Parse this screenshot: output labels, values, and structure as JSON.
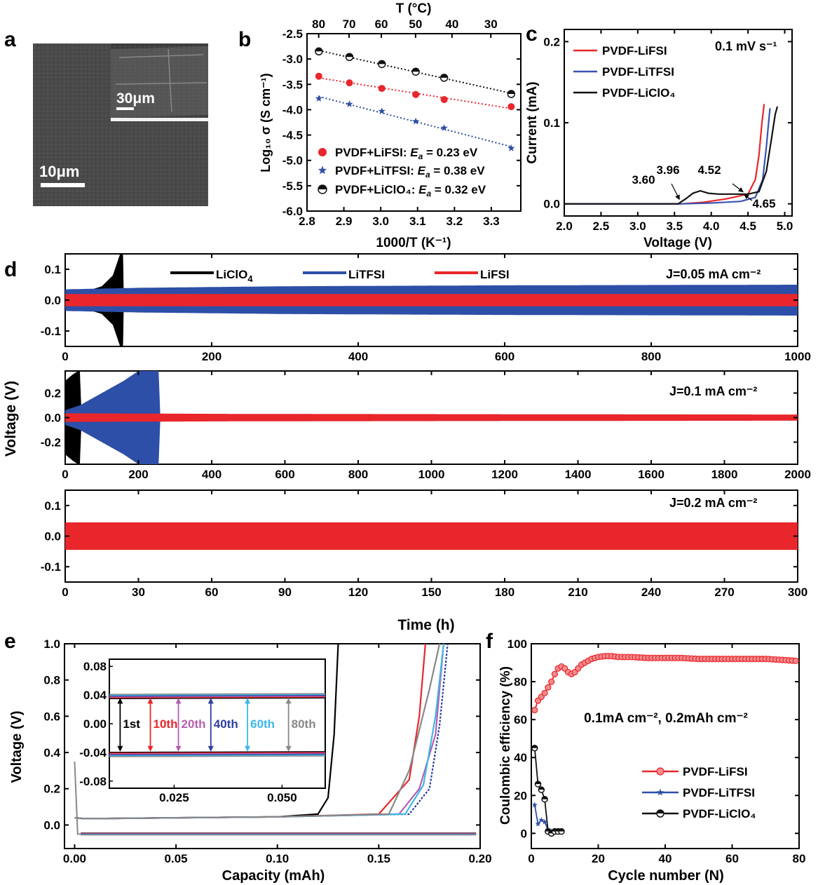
{
  "panels": {
    "a": {
      "letter": "a",
      "scalebar_main": "10μm",
      "scalebar_inset": "30μm"
    },
    "b": {
      "letter": "b"
    },
    "c": {
      "letter": "c"
    },
    "d": {
      "letter": "d"
    },
    "e": {
      "letter": "e"
    },
    "f": {
      "letter": "f"
    }
  },
  "chart_data": [
    {
      "id": "b",
      "type": "scatter",
      "xlabel": "1000/T (K⁻¹)",
      "ylabel": "Log₁₀ σ (S cm⁻¹)",
      "top_xlabel": "T (°C)",
      "xlim": [
        2.8,
        3.38
      ],
      "ylim": [
        -6.0,
        -2.5
      ],
      "xticks": [
        2.8,
        2.9,
        3.0,
        3.1,
        3.2,
        3.3
      ],
      "xtick_labels": [
        "2.8",
        "2.9",
        "3.0",
        "3.1",
        "3.2",
        "3.3"
      ],
      "yticks": [
        -2.5,
        -3.0,
        -3.5,
        -4.0,
        -4.5,
        -5.0,
        -5.5,
        -6.0
      ],
      "ytick_labels": [
        "-2.5",
        "-3.0",
        "-3.5",
        "-4.0",
        "-4.5",
        "-5.0",
        "-5.5",
        "-6.0"
      ],
      "top_ticks": [
        80,
        70,
        60,
        50,
        40,
        30
      ],
      "top_tick_labels": [
        "80",
        "70",
        "60",
        "50",
        "40",
        "30"
      ],
      "x": [
        2.832,
        2.915,
        3.003,
        3.095,
        3.172,
        3.354
      ],
      "series": [
        {
          "name": "PVDF+LiFSI",
          "legend": "PVDF+LiFSI: ",
          "ea": "E",
          "ea_sub": "a",
          "ea_val": " = 0.23 eV",
          "color": "#e8262b",
          "marker": "circle",
          "values": [
            -3.34,
            -3.47,
            -3.58,
            -3.7,
            -3.8,
            -3.94
          ]
        },
        {
          "name": "PVDF+LiTFSI",
          "legend": "PVDF+LiTFSI: ",
          "ea": "E",
          "ea_sub": "a",
          "ea_val": " = 0.38 eV",
          "color": "#2f4fa3",
          "marker": "star",
          "values": [
            -3.78,
            -3.89,
            -4.03,
            -4.23,
            -4.36,
            -4.76
          ]
        },
        {
          "name": "PVDF+LiClO4",
          "legend": "PVDF+LiClO₄: ",
          "ea": "E",
          "ea_sub": "a",
          "ea_val": " = 0.32 eV",
          "color": "#111111",
          "marker": "halfcircle",
          "values": [
            -2.85,
            -2.96,
            -3.1,
            -3.25,
            -3.37,
            -3.69
          ]
        }
      ]
    },
    {
      "id": "c",
      "type": "line",
      "xlabel": "Voltage (V)",
      "ylabel": "Current (mA)",
      "annotation": "0.1 mV s⁻¹",
      "xlim": [
        2.0,
        5.1
      ],
      "ylim": [
        -0.015,
        0.215
      ],
      "xticks": [
        2.0,
        2.5,
        3.0,
        3.5,
        4.0,
        4.5,
        5.0
      ],
      "xtick_labels": [
        "2.0",
        "2.5",
        "3.0",
        "3.5",
        "4.0",
        "4.5",
        "5.0"
      ],
      "yticks": [
        0.0,
        0.1,
        0.2
      ],
      "ytick_labels": [
        "0.0",
        "0.1",
        "0.2"
      ],
      "point_labels": [
        "3.60",
        "3.96",
        "4.52",
        "4.65"
      ],
      "series": [
        {
          "name": "PVDF-LiFSI",
          "color": "#e8262b",
          "x": [
            2.0,
            3.6,
            3.9,
            4.2,
            4.5,
            4.6,
            4.65,
            4.69,
            4.72
          ],
          "values": [
            0.0,
            0.0,
            0.002,
            0.006,
            0.012,
            0.03,
            0.06,
            0.1,
            0.123
          ]
        },
        {
          "name": "PVDF-LiTFSI",
          "color": "#3a52b0",
          "x": [
            2.0,
            3.6,
            4.0,
            4.4,
            4.6,
            4.7,
            4.75,
            4.78,
            4.8
          ],
          "values": [
            0.0,
            0.0,
            0.001,
            0.003,
            0.008,
            0.03,
            0.07,
            0.1,
            0.118
          ]
        },
        {
          "name": "PVDF-LiClO₄",
          "color": "#111111",
          "x": [
            2.0,
            3.55,
            3.65,
            3.75,
            3.85,
            3.96,
            4.1,
            4.3,
            4.5,
            4.65,
            4.75,
            4.82,
            4.87,
            4.9
          ],
          "values": [
            0.0,
            0.0,
            0.006,
            0.013,
            0.016,
            0.013,
            0.012,
            0.012,
            0.012,
            0.015,
            0.04,
            0.08,
            0.11,
            0.12
          ]
        }
      ]
    },
    {
      "id": "d1",
      "type": "area",
      "annotation": "J=0.05 mA cm⁻²",
      "xlim": [
        0,
        1000
      ],
      "ylim": [
        -0.15,
        0.15
      ],
      "xticks": [
        0,
        200,
        400,
        600,
        800,
        1000
      ],
      "xtick_labels": [
        "0",
        "200",
        "400",
        "600",
        "800",
        "1000"
      ],
      "yticks": [
        0.1,
        0.0,
        -0.1
      ],
      "ytick_labels": [
        "0.1",
        "0.0",
        "-0.1"
      ],
      "series": [
        {
          "name": "LiClO₄",
          "label": "LiClO",
          "sub": "4",
          "color": "#000000",
          "x": [
            0,
            10,
            30,
            50,
            65,
            75,
            79,
            80
          ],
          "amplitude": [
            0.03,
            0.025,
            0.03,
            0.045,
            0.08,
            0.15,
            0.15,
            0.0
          ]
        },
        {
          "name": "LiTFSI",
          "label": "LiTFSI",
          "color": "#2d4fa8",
          "x": [
            0,
            100,
            300,
            600,
            1000
          ],
          "amplitude": [
            0.035,
            0.04,
            0.045,
            0.048,
            0.05
          ]
        },
        {
          "name": "LiFSI",
          "label": "LiFSI",
          "color": "#e8262b",
          "x": [
            0,
            1000
          ],
          "amplitude": [
            0.02,
            0.02
          ]
        }
      ]
    },
    {
      "id": "d2",
      "type": "area",
      "ylabel": "Voltage (V)",
      "annotation": "J=0.1 mA cm⁻²",
      "xlim": [
        0,
        2000
      ],
      "ylim": [
        -0.38,
        0.38
      ],
      "xticks": [
        0,
        200,
        400,
        600,
        800,
        1000,
        1200,
        1400,
        1600,
        1800,
        2000
      ],
      "xtick_labels": [
        "0",
        "200",
        "400",
        "600",
        "800",
        "1000",
        "1200",
        "1400",
        "1600",
        "1800",
        "2000"
      ],
      "yticks": [
        0.2,
        0.0,
        -0.2
      ],
      "ytick_labels": [
        "0.2",
        "0.0",
        "-0.2"
      ],
      "series": [
        {
          "name": "LiClO₄",
          "color": "#000000",
          "x": [
            0,
            20,
            35,
            40,
            45
          ],
          "amplitude": [
            0.3,
            0.35,
            0.38,
            0.38,
            0.0
          ]
        },
        {
          "name": "LiTFSI",
          "color": "#2d4fa8",
          "x": [
            0,
            40,
            100,
            160,
            200,
            255,
            260
          ],
          "amplitude": [
            0.06,
            0.1,
            0.2,
            0.3,
            0.38,
            0.38,
            0.0
          ]
        },
        {
          "name": "LiFSI",
          "color": "#e8262b",
          "x": [
            0,
            500,
            2000
          ],
          "amplitude": [
            0.035,
            0.03,
            0.025
          ]
        }
      ]
    },
    {
      "id": "d3",
      "type": "area",
      "xlabel": "Time (h)",
      "annotation": "J=0.2 mA cm⁻²",
      "xlim": [
        0,
        300
      ],
      "ylim": [
        -0.15,
        0.15
      ],
      "xticks": [
        0,
        30,
        60,
        90,
        120,
        150,
        180,
        210,
        240,
        270,
        300
      ],
      "xtick_labels": [
        "0",
        "30",
        "60",
        "90",
        "120",
        "150",
        "180",
        "210",
        "240",
        "270",
        "300"
      ],
      "yticks": [
        0.1,
        0.0,
        -0.1
      ],
      "ytick_labels": [
        "0.1",
        "0.0",
        "-0.1"
      ],
      "series": [
        {
          "name": "LiFSI",
          "color": "#e8262b",
          "x": [
            0,
            300
          ],
          "amplitude": [
            0.045,
            0.045
          ]
        }
      ]
    },
    {
      "id": "e",
      "type": "line",
      "xlabel": "Capacity (mAh)",
      "ylabel": "Voltage (V)",
      "xlim": [
        -0.005,
        0.2
      ],
      "ylim": [
        -0.13,
        1.0
      ],
      "xticks": [
        0.0,
        0.05,
        0.1,
        0.15,
        0.2
      ],
      "xtick_labels": [
        "0.00",
        "0.05",
        "0.10",
        "0.15",
        "0.20"
      ],
      "yticks": [
        0.0,
        0.2,
        0.4,
        0.6,
        0.8,
        1.0
      ],
      "ytick_labels": [
        "0.0",
        "0.2",
        "0.4",
        "0.6",
        "0.8",
        "1.0"
      ],
      "series": [
        {
          "name": "1st",
          "color": "#000000",
          "x": [
            0,
            0.005,
            0.05,
            0.1,
            0.12,
            0.125,
            0.128,
            0.13
          ],
          "values": [
            0.04,
            0.035,
            0.04,
            0.045,
            0.06,
            0.15,
            0.5,
            1.0
          ]
        },
        {
          "name": "10th",
          "color": "#e8262b",
          "x": [
            0,
            0.005,
            0.1,
            0.15,
            0.165,
            0.17,
            0.173
          ],
          "values": [
            0.04,
            0.035,
            0.045,
            0.06,
            0.25,
            0.6,
            1.0
          ]
        },
        {
          "name": "20th",
          "color": "#b65fb0",
          "x": [
            0,
            0.005,
            0.1,
            0.16,
            0.17,
            0.178,
            0.182
          ],
          "values": [
            0.04,
            0.035,
            0.045,
            0.06,
            0.2,
            0.5,
            1.0
          ]
        },
        {
          "name": "40th",
          "color": "#2d3f9e",
          "x": [
            0,
            0.005,
            0.1,
            0.165,
            0.175,
            0.18,
            0.184
          ],
          "values": [
            0.04,
            0.035,
            0.045,
            0.06,
            0.2,
            0.55,
            1.0
          ]
        },
        {
          "name": "60th",
          "color": "#3cb8e8",
          "x": [
            0,
            0.005,
            0.1,
            0.163,
            0.172,
            0.178,
            0.182
          ],
          "values": [
            0.04,
            0.035,
            0.045,
            0.06,
            0.22,
            0.6,
            1.0
          ]
        },
        {
          "name": "80th",
          "color": "#888888",
          "x": [
            0,
            0.005,
            0.1,
            0.155,
            0.165,
            0.175,
            0.18
          ],
          "values": [
            0.04,
            0.035,
            0.045,
            0.06,
            0.3,
            0.75,
            1.0
          ]
        }
      ],
      "inset": {
        "xlim": [
          0.01,
          0.06
        ],
        "ylim": [
          -0.09,
          0.09
        ],
        "xticks": [
          0.025,
          0.05
        ],
        "xtick_labels": [
          "0.025",
          "0.050"
        ],
        "yticks": [
          0.08,
          0.04,
          0.0,
          -0.04,
          -0.08
        ],
        "ytick_labels": [
          "0.08",
          "0.04",
          "0.00",
          "-0.04",
          "-0.08"
        ],
        "arrows": [
          {
            "label": "1st",
            "color": "#000000",
            "x": 0.0125
          },
          {
            "label": "10th",
            "color": "#e8262b",
            "x": 0.0195
          },
          {
            "label": "20th",
            "color": "#b65fb0",
            "x": 0.026
          },
          {
            "label": "40th",
            "color": "#2d3f9e",
            "x": 0.0335
          },
          {
            "label": "60th",
            "color": "#3cb8e8",
            "x": 0.042
          },
          {
            "label": "80th",
            "color": "#888888",
            "x": 0.0515
          }
        ]
      }
    },
    {
      "id": "f",
      "type": "line",
      "xlabel": "Cycle number (N)",
      "ylabel": "Coulombic efficiency (%)",
      "annotation": "0.1mA cm⁻², 0.2mAh cm⁻²",
      "xlim": [
        0,
        80
      ],
      "ylim": [
        -8,
        100
      ],
      "xticks": [
        0,
        20,
        40,
        60,
        80
      ],
      "xtick_labels": [
        "0",
        "20",
        "40",
        "60",
        "80"
      ],
      "yticks": [
        0,
        20,
        40,
        60,
        80,
        100
      ],
      "ytick_labels": [
        "0",
        "20",
        "40",
        "60",
        "80",
        "100"
      ],
      "series": [
        {
          "name": "PVDF-LiFSI",
          "color": "#e8262b",
          "marker": "circle",
          "x": [
            1,
            2,
            3,
            4,
            5,
            6,
            7,
            8,
            9,
            10,
            11,
            12,
            13,
            14,
            15,
            16,
            17,
            18,
            19,
            20,
            22,
            24,
            26,
            28,
            30,
            35,
            40,
            45,
            50,
            55,
            60,
            65,
            70,
            75,
            79
          ],
          "values": [
            65,
            70,
            72,
            74,
            77,
            80,
            84,
            87,
            88,
            87,
            85,
            84,
            85,
            87,
            89,
            90,
            91,
            92,
            92.5,
            93,
            93.5,
            93.5,
            93,
            93,
            93,
            92.5,
            92.5,
            92.5,
            92,
            92,
            92,
            92,
            92,
            91.5,
            91
          ]
        },
        {
          "name": "PVDF-LiTFSI",
          "color": "#2d4fa8",
          "marker": "star",
          "x": [
            1,
            2,
            3,
            4,
            5,
            6,
            7,
            8,
            9
          ],
          "values": [
            15,
            5,
            7,
            6,
            2,
            1,
            1,
            1,
            1
          ]
        },
        {
          "name": "PVDF-LiClO₄",
          "color": "#111111",
          "marker": "halfcircle",
          "x": [
            1,
            2,
            3,
            4,
            5,
            6,
            7,
            8,
            9
          ],
          "values": [
            45,
            26,
            23,
            18,
            1,
            0,
            1,
            1,
            1
          ]
        }
      ]
    }
  ]
}
